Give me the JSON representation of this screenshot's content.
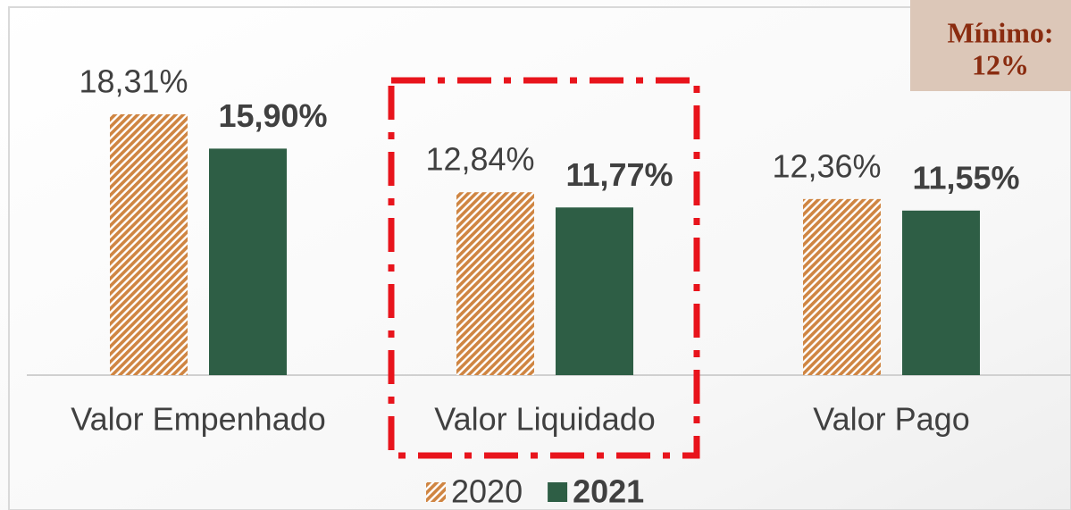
{
  "chart_data": {
    "type": "bar",
    "categories": [
      "Valor Empenhado",
      "Valor Liquidado",
      "Valor Pago"
    ],
    "series": [
      {
        "name": "2020",
        "color": "#cf8542",
        "pattern": "hatch",
        "values": [
          18.31,
          12.84,
          12.36
        ],
        "value_labels": [
          "18,31%",
          "12,84%",
          "12,36%"
        ]
      },
      {
        "name": "2021",
        "color": "#2e5e45",
        "values": [
          15.9,
          11.77,
          11.55
        ],
        "value_labels": [
          "15,90%",
          "11,77%",
          "11,55%"
        ]
      }
    ],
    "ylim": [
      0,
      20
    ],
    "annotation": [
      "Mínimo:",
      "12%"
    ],
    "highlight_category": 1,
    "highlight_color": "#e8141c"
  }
}
